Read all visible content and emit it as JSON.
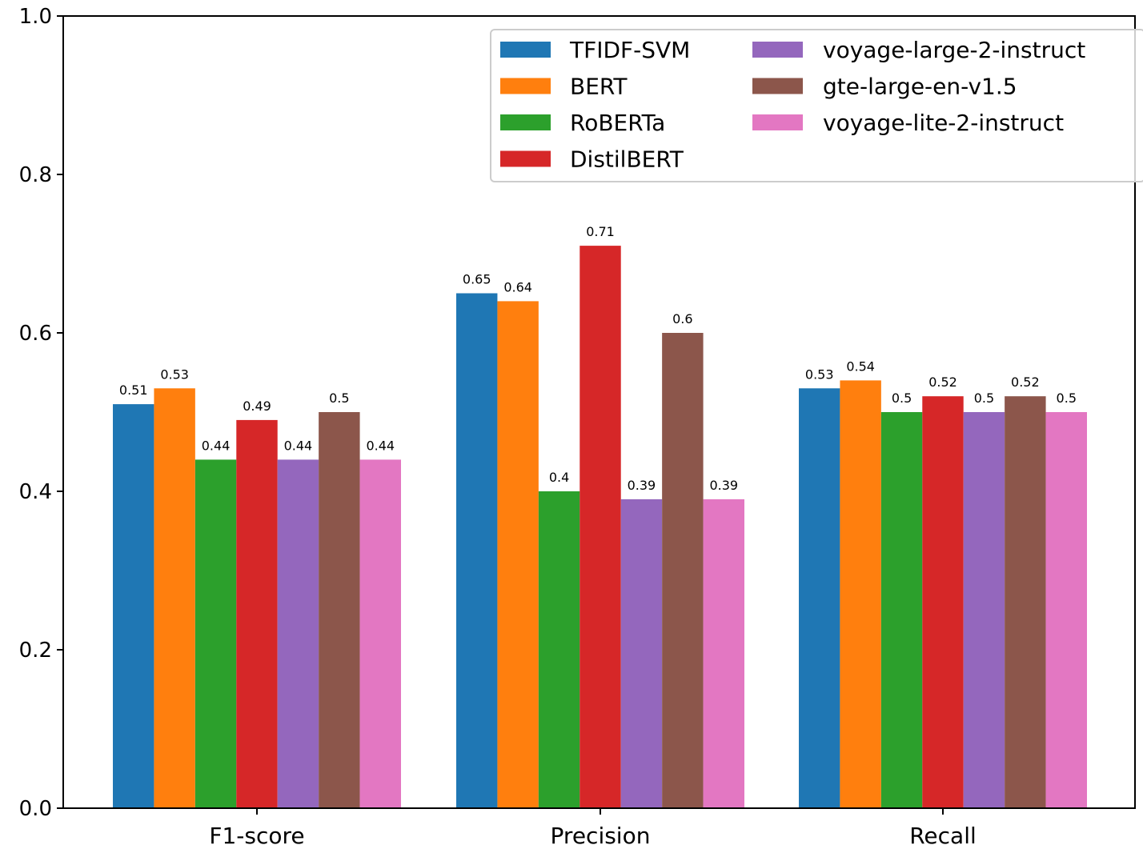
{
  "chart_data": {
    "type": "bar",
    "title": "",
    "xlabel": "",
    "ylabel": "",
    "ylim": [
      0,
      1.0
    ],
    "yticks": [
      "0.0",
      "0.2",
      "0.4",
      "0.6",
      "0.8",
      "1.0"
    ],
    "ytick_values": [
      0.0,
      0.2,
      0.4,
      0.6,
      0.8,
      1.0
    ],
    "categories": [
      "F1-score",
      "Precision",
      "Recall"
    ],
    "legend_position": "top-right",
    "series": [
      {
        "name": "TFIDF-SVM",
        "color": "#1f77b4",
        "values": [
          0.51,
          0.65,
          0.53
        ],
        "labels": [
          "0.51",
          "0.65",
          "0.53"
        ]
      },
      {
        "name": "BERT",
        "color": "#ff7f0e",
        "values": [
          0.53,
          0.64,
          0.54
        ],
        "labels": [
          "0.53",
          "0.64",
          "0.54"
        ]
      },
      {
        "name": "RoBERTa",
        "color": "#2ca02c",
        "values": [
          0.44,
          0.4,
          0.5
        ],
        "labels": [
          "0.44",
          "0.4",
          "0.5"
        ]
      },
      {
        "name": "DistilBERT",
        "color": "#d62728",
        "values": [
          0.49,
          0.71,
          0.52
        ],
        "labels": [
          "0.49",
          "0.71",
          "0.52"
        ]
      },
      {
        "name": "voyage-large-2-instruct",
        "color": "#9467bd",
        "values": [
          0.44,
          0.39,
          0.5
        ],
        "labels": [
          "0.44",
          "0.39",
          "0.5"
        ]
      },
      {
        "name": "gte-large-en-v1.5",
        "color": "#8c564b",
        "values": [
          0.5,
          0.6,
          0.52
        ],
        "labels": [
          "0.5",
          "0.6",
          "0.52"
        ]
      },
      {
        "name": "voyage-lite-2-instruct",
        "color": "#e377c2",
        "values": [
          0.44,
          0.39,
          0.5
        ],
        "labels": [
          "0.44",
          "0.39",
          "0.5"
        ]
      }
    ]
  }
}
